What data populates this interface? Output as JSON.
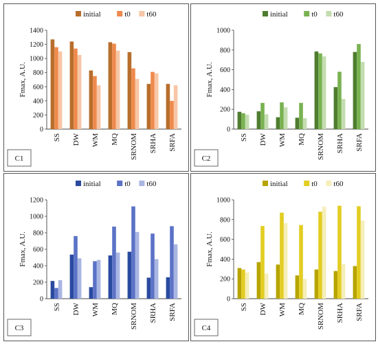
{
  "chart_data": [
    {
      "type": "bar",
      "panel_label": "C1",
      "ylabel": "Fmax, A.U.",
      "ylim": [
        0,
        1400
      ],
      "yticks": [
        0,
        200,
        400,
        600,
        800,
        1000,
        1200,
        1400
      ],
      "legend_placement": "top-center",
      "categories": [
        "SS",
        "DW",
        "WM",
        "MQ",
        "SRNOM",
        "SRHA",
        "SRFA"
      ],
      "series": [
        {
          "name": "initial",
          "color": "#b86e2c",
          "values": [
            1270,
            1240,
            830,
            1230,
            1090,
            640,
            640
          ]
        },
        {
          "name": "t0",
          "color": "#ef8a4c",
          "values": [
            1160,
            1140,
            750,
            1210,
            860,
            810,
            400
          ]
        },
        {
          "name": "t60",
          "color": "#f7c6a6",
          "values": [
            1100,
            1050,
            620,
            1110,
            710,
            790,
            620
          ]
        }
      ]
    },
    {
      "type": "bar",
      "panel_label": "C2",
      "ylabel": "Fmax, A.U.",
      "ylim": [
        0,
        1000
      ],
      "yticks": [
        0,
        200,
        400,
        600,
        800,
        1000
      ],
      "legend_placement": "top-center",
      "categories": [
        "SS",
        "DW",
        "WM",
        "MQ",
        "SRNOM",
        "SRHA",
        "SRFA"
      ],
      "series": [
        {
          "name": "initial",
          "color": "#4e7d2f",
          "values": [
            175,
            180,
            120,
            115,
            785,
            425,
            780
          ]
        },
        {
          "name": "t0",
          "color": "#79b251",
          "values": [
            160,
            265,
            270,
            265,
            765,
            580,
            860
          ]
        },
        {
          "name": "t60",
          "color": "#c4ddb0",
          "values": [
            145,
            150,
            220,
            110,
            735,
            305,
            680
          ]
        }
      ]
    },
    {
      "type": "bar",
      "panel_label": "C3",
      "ylabel": "Fmax, A.U.",
      "ylim": [
        0,
        1200
      ],
      "yticks": [
        0,
        200,
        400,
        600,
        800,
        1000,
        1200
      ],
      "legend_placement": "top-center",
      "categories": [
        "SS",
        "DW",
        "WM",
        "MQ",
        "SRNOM",
        "SRHA",
        "SRFA"
      ],
      "series": [
        {
          "name": "initial",
          "color": "#2a4aa0",
          "values": [
            215,
            535,
            140,
            525,
            570,
            255,
            260
          ]
        },
        {
          "name": "t0",
          "color": "#5b72c6",
          "values": [
            130,
            760,
            455,
            875,
            1120,
            790,
            880
          ]
        },
        {
          "name": "t60",
          "color": "#a9b6e2",
          "values": [
            225,
            490,
            470,
            560,
            810,
            480,
            660
          ]
        }
      ]
    },
    {
      "type": "bar",
      "panel_label": "C4",
      "ylabel": "Fmax, A.U.",
      "ylim": [
        0,
        1000
      ],
      "yticks": [
        0,
        200,
        400,
        600,
        800,
        1000
      ],
      "legend_placement": "top-center",
      "categories": [
        "SS",
        "DW",
        "WM",
        "MQ",
        "SRNOM",
        "SRHA",
        "SRFA"
      ],
      "series": [
        {
          "name": "initial",
          "color": "#b7a400",
          "values": [
            310,
            370,
            345,
            235,
            295,
            280,
            330
          ]
        },
        {
          "name": "t0",
          "color": "#e2cd22",
          "values": [
            295,
            735,
            870,
            745,
            880,
            940,
            935
          ]
        },
        {
          "name": "t60",
          "color": "#f5eeb8",
          "values": [
            265,
            255,
            765,
            200,
            930,
            350,
            790
          ]
        }
      ]
    }
  ]
}
